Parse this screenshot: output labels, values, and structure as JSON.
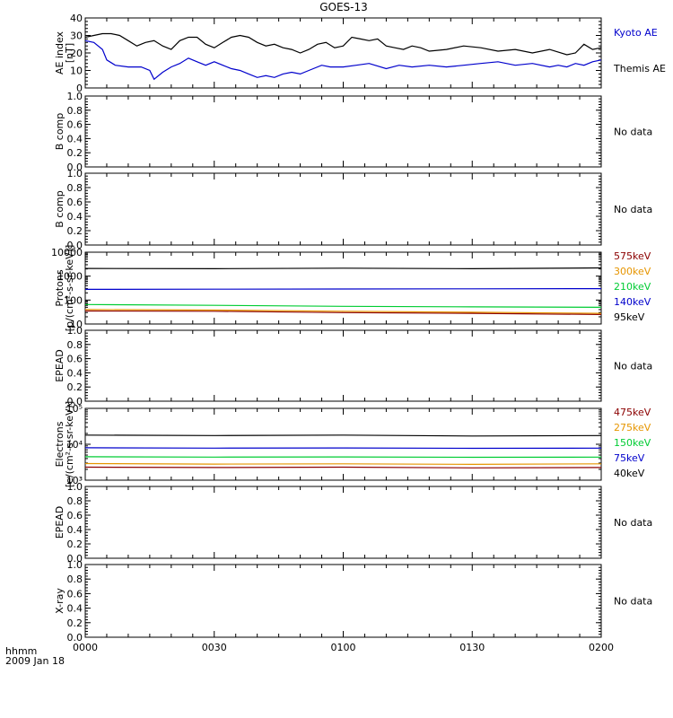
{
  "title": "GOES-13",
  "footer": {
    "label": "hhmm",
    "date": "2009 Jan 18"
  },
  "x_axis": {
    "ticks": [
      "0000",
      "0030",
      "0100",
      "0130",
      "0200"
    ],
    "range_minutes": [
      0,
      120
    ]
  },
  "chart_data": [
    {
      "type": "line",
      "ylabel": "AE index [nT]",
      "ylim": [
        0,
        40
      ],
      "ticks": [
        "0",
        "10",
        "20",
        "30",
        "40"
      ],
      "series": [
        {
          "name": "Kyoto AE",
          "color": "#0000cc",
          "x": [
            0,
            2,
            4,
            5,
            7,
            10,
            13,
            15,
            16,
            18,
            20,
            22,
            24,
            26,
            28,
            30,
            32,
            34,
            36,
            38,
            40,
            42,
            44,
            46,
            48,
            50,
            52,
            55,
            57,
            60,
            63,
            66,
            70,
            73,
            76,
            80,
            84,
            88,
            92,
            96,
            100,
            104,
            108,
            110,
            112,
            114,
            116,
            118,
            120
          ],
          "y": [
            27,
            26,
            22,
            16,
            13,
            12,
            12,
            10,
            5,
            9,
            12,
            14,
            17,
            15,
            13,
            15,
            13,
            11,
            10,
            8,
            6,
            7,
            6,
            8,
            9,
            8,
            10,
            13,
            12,
            12,
            13,
            14,
            11,
            13,
            12,
            13,
            12,
            13,
            14,
            15,
            13,
            14,
            12,
            13,
            12,
            14,
            13,
            15,
            16
          ]
        },
        {
          "name": "Themis AE",
          "color": "#000000",
          "x": [
            0,
            2,
            4,
            6,
            8,
            10,
            12,
            14,
            16,
            18,
            20,
            22,
            24,
            26,
            28,
            30,
            32,
            34,
            36,
            38,
            40,
            42,
            44,
            46,
            48,
            50,
            52,
            54,
            56,
            58,
            60,
            62,
            64,
            66,
            68,
            70,
            72,
            74,
            76,
            78,
            80,
            84,
            88,
            92,
            96,
            100,
            104,
            108,
            112,
            114,
            116,
            118,
            120
          ],
          "y": [
            29,
            30,
            31,
            31,
            30,
            27,
            24,
            26,
            27,
            24,
            22,
            27,
            29,
            29,
            25,
            23,
            26,
            29,
            30,
            29,
            26,
            24,
            25,
            23,
            22,
            20,
            22,
            25,
            26,
            23,
            24,
            29,
            28,
            27,
            28,
            24,
            23,
            22,
            24,
            23,
            21,
            22,
            24,
            23,
            21,
            22,
            20,
            22,
            19,
            20,
            25,
            22,
            23
          ]
        }
      ]
    },
    {
      "type": "line",
      "ylabel": "B comp",
      "ylim": [
        0,
        1
      ],
      "ticks": [
        "0.0",
        "0.2",
        "0.4",
        "0.6",
        "0.8",
        "1.0"
      ],
      "status": "No data",
      "series": []
    },
    {
      "type": "line",
      "ylabel": "B comp",
      "ylim": [
        0,
        1
      ],
      "ticks": [
        "0.0",
        "0.2",
        "0.4",
        "0.6",
        "0.8",
        "1.0"
      ],
      "status": "No data",
      "series": []
    },
    {
      "type": "line",
      "scale": "log",
      "ylabel": "Protons [p/(cm²-s-sr-keV)]",
      "ylim": [
        10,
        10000
      ],
      "ticks": [
        "10",
        "100",
        "1000",
        "10000"
      ],
      "series": [
        {
          "name": "575keV",
          "color": "#8b0000",
          "x": [
            0,
            30,
            60,
            90,
            120
          ],
          "y": [
            35,
            34,
            30,
            28,
            25
          ]
        },
        {
          "name": "300keV",
          "color": "#e69500",
          "x": [
            0,
            30,
            60,
            90,
            120
          ],
          "y": [
            40,
            38,
            34,
            31,
            28
          ]
        },
        {
          "name": "210keV",
          "color": "#00cc33",
          "x": [
            0,
            30,
            60,
            90,
            120
          ],
          "y": [
            65,
            60,
            55,
            52,
            50
          ]
        },
        {
          "name": "140keV",
          "color": "#0000cc",
          "x": [
            0,
            30,
            60,
            90,
            120
          ],
          "y": [
            280,
            285,
            290,
            295,
            300
          ]
        },
        {
          "name": "95keV",
          "color": "#000000",
          "x": [
            0,
            30,
            60,
            90,
            120
          ],
          "y": [
            2100,
            2050,
            2150,
            2050,
            2200
          ]
        }
      ]
    },
    {
      "type": "line",
      "ylabel": "EPEAD",
      "ylim": [
        0,
        1
      ],
      "ticks": [
        "0.0",
        "0.2",
        "0.4",
        "0.6",
        "0.8",
        "1.0"
      ],
      "status": "No data",
      "series": []
    },
    {
      "type": "line",
      "scale": "log",
      "ylabel": "Electrons [e/(cm²-s-sr-keV)]",
      "ylim": [
        1000,
        100000
      ],
      "ticks": [
        "10³",
        "10⁴",
        "10⁵"
      ],
      "series": [
        {
          "name": "475keV",
          "color": "#8b0000",
          "x": [
            0,
            30,
            60,
            90,
            120
          ],
          "y": [
            2300,
            2250,
            2300,
            2200,
            2250
          ]
        },
        {
          "name": "275keV",
          "color": "#e69500",
          "x": [
            0,
            30,
            60,
            90,
            120
          ],
          "y": [
            2900,
            2800,
            2850,
            2750,
            2850
          ]
        },
        {
          "name": "150keV",
          "color": "#00cc33",
          "x": [
            0,
            30,
            60,
            90,
            120
          ],
          "y": [
            4500,
            4400,
            4450,
            4350,
            4400
          ]
        },
        {
          "name": "75keV",
          "color": "#0000cc",
          "x": [
            0,
            30,
            60,
            90,
            120
          ],
          "y": [
            8000,
            7800,
            7900,
            7700,
            7800
          ]
        },
        {
          "name": "40keV",
          "color": "#000000",
          "x": [
            0,
            30,
            60,
            90,
            120
          ],
          "y": [
            18000,
            17500,
            18000,
            17000,
            17500
          ]
        }
      ]
    },
    {
      "type": "line",
      "ylabel": "EPEAD",
      "ylim": [
        0,
        1
      ],
      "ticks": [
        "0.0",
        "0.2",
        "0.4",
        "0.6",
        "0.8",
        "1.0"
      ],
      "status": "No data",
      "series": []
    },
    {
      "type": "line",
      "ylabel": "X-ray",
      "ylim": [
        0,
        1
      ],
      "ticks": [
        "0.0",
        "0.2",
        "0.4",
        "0.6",
        "0.8",
        "1.0"
      ],
      "status": "No data",
      "series": []
    }
  ]
}
